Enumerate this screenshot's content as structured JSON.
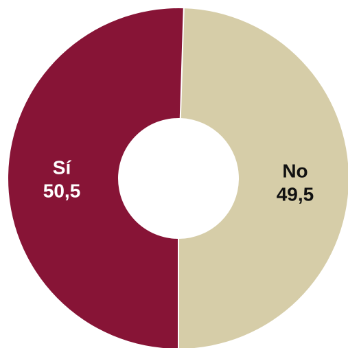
{
  "chart_data": {
    "type": "pie",
    "style": "donut",
    "title": "",
    "slices": [
      {
        "label": "No",
        "value": 49.5,
        "display_value": "49,5",
        "color": "#d6cda8",
        "label_color": "#111111"
      },
      {
        "label": "Sí",
        "value": 50.5,
        "display_value": "50,5",
        "color": "#871436",
        "label_color": "#ffffff"
      }
    ],
    "legend": "none",
    "background": "#ffffff"
  }
}
